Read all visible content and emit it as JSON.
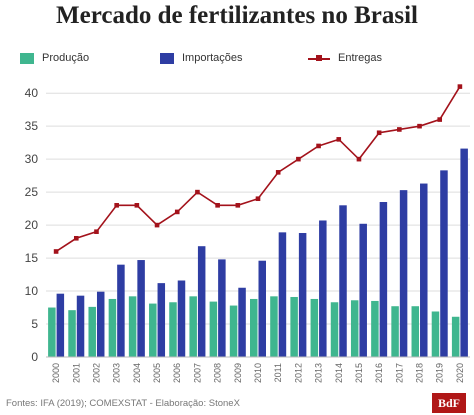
{
  "chart_data": {
    "type": "bar",
    "title": "Mercado de fertilizantes no Brasil",
    "categories": [
      "2000",
      "2001",
      "2002",
      "2003",
      "2004",
      "2005",
      "2006",
      "2007",
      "2008",
      "2009",
      "2010",
      "2011",
      "2012",
      "2013",
      "2014",
      "2015",
      "2016",
      "2017",
      "2018",
      "2019",
      "2020"
    ],
    "series": [
      {
        "name": "Produção",
        "kind": "bar",
        "color": "#3fb68f",
        "values": [
          7.5,
          7.1,
          7.6,
          8.8,
          9.2,
          8.1,
          8.3,
          9.2,
          8.4,
          7.8,
          8.8,
          9.2,
          9.1,
          8.8,
          8.3,
          8.6,
          8.5,
          7.7,
          7.7,
          6.9,
          6.1
        ]
      },
      {
        "name": "Importações",
        "kind": "bar",
        "color": "#2e3da3",
        "values": [
          9.6,
          9.3,
          9.9,
          14.0,
          14.7,
          11.2,
          11.6,
          16.8,
          14.8,
          10.5,
          14.6,
          18.9,
          18.8,
          20.7,
          23.0,
          20.2,
          23.5,
          25.3,
          26.3,
          28.3,
          31.6
        ]
      },
      {
        "name": "Entregas",
        "kind": "line",
        "color": "#a3121b",
        "values": [
          16.0,
          18.0,
          19.0,
          23.0,
          23.0,
          20.0,
          22.0,
          25.0,
          23.0,
          23.0,
          24.0,
          28.0,
          30.0,
          32.0,
          33.0,
          30.0,
          34.0,
          34.5,
          35.0,
          36.0,
          41.0
        ]
      }
    ],
    "yticks": [
      "0",
      "5",
      "10",
      "15",
      "20",
      "25",
      "30",
      "35",
      "40"
    ],
    "ylim": [
      0,
      42
    ],
    "grid": true,
    "legend_position": "top"
  },
  "footer": {
    "source": "Fontes: IFA (2019); COMEXSTAT - Elaboração: StoneX",
    "logo": "BdF"
  }
}
